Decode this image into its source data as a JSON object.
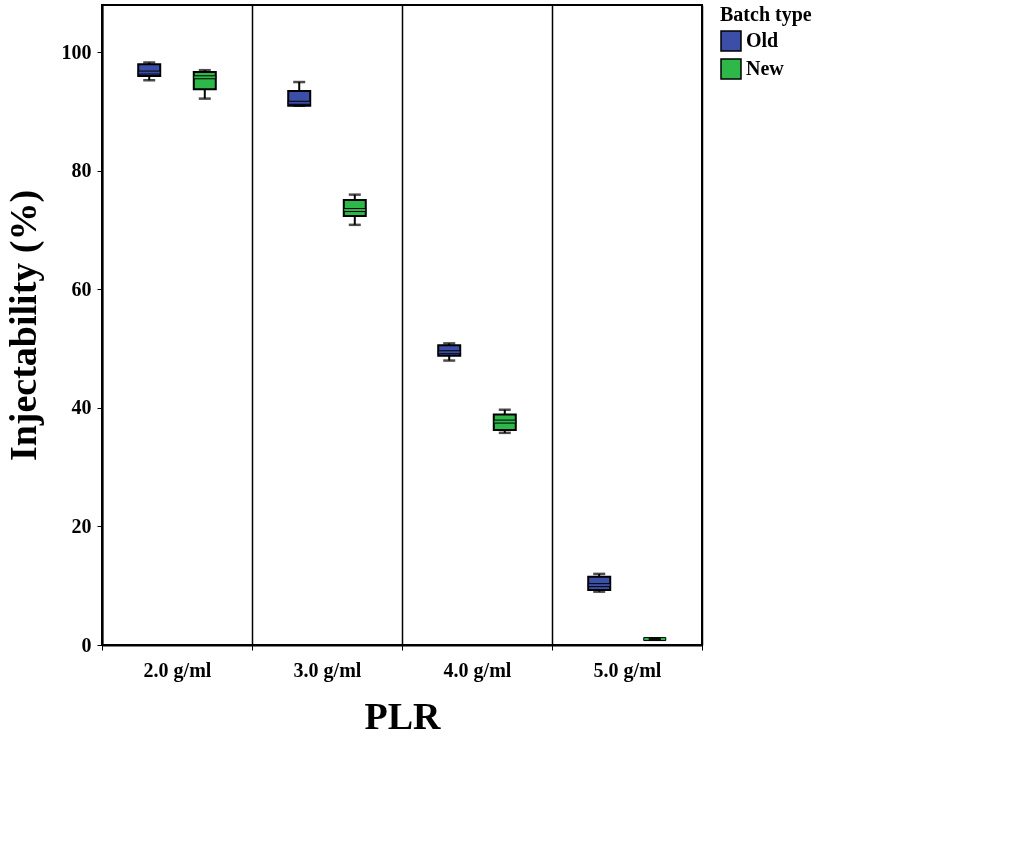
{
  "chart_data": {
    "type": "box",
    "xlabel": "PLR",
    "ylabel": "Injectability (%)",
    "legend_title": "Batch type",
    "categories": [
      "2.0 g/ml",
      "3.0 g/ml",
      "4.0 g/ml",
      "5.0 g/ml"
    ],
    "ylim": [
      0,
      108
    ],
    "yticks": [
      0,
      20,
      40,
      60,
      80,
      100
    ],
    "grid": "x",
    "legend": "top right",
    "series": [
      {
        "name": "Old",
        "color": "#3c4fa8",
        "boxes": [
          {
            "low": 95.3,
            "q1": 96.0,
            "median": 96.6,
            "q3": 98.0,
            "high": 98.3
          },
          {
            "low": 91.0,
            "q1": 91.0,
            "median": 91.5,
            "q3": 93.5,
            "high": 95.0
          },
          {
            "low": 48.0,
            "q1": 48.8,
            "median": 49.4,
            "q3": 50.6,
            "high": 50.9
          },
          {
            "low": 9.0,
            "q1": 9.3,
            "median": 10.1,
            "q3": 11.5,
            "high": 12.0
          }
        ]
      },
      {
        "name": "New",
        "color": "#2fb84a",
        "boxes": [
          {
            "low": 92.2,
            "q1": 93.8,
            "median": 95.8,
            "q3": 96.7,
            "high": 97.0
          },
          {
            "low": 70.9,
            "q1": 72.4,
            "median": 73.4,
            "q3": 75.1,
            "high": 76.0
          },
          {
            "low": 35.8,
            "q1": 36.3,
            "median": 37.7,
            "q3": 38.9,
            "high": 39.7
          },
          {
            "low": 1.0,
            "q1": 1.0,
            "median": 1.0,
            "q3": 1.0,
            "high": 1.0
          }
        ]
      }
    ]
  }
}
